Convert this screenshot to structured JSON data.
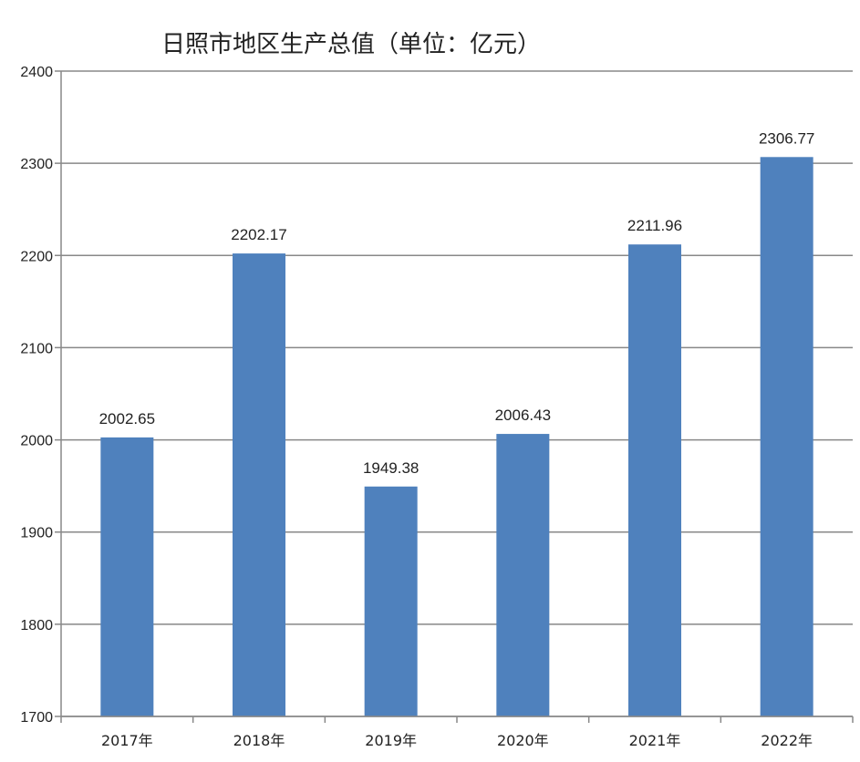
{
  "chart_data": {
    "type": "bar",
    "title": "日照市地区生产总值（单位：亿元）",
    "categories": [
      "2017年",
      "2018年",
      "2019年",
      "2020年",
      "2021年",
      "2022年"
    ],
    "values": [
      2002.65,
      2202.17,
      1949.38,
      2006.43,
      2211.96,
      2306.77
    ],
    "value_labels": [
      "2002.65",
      "2202.17",
      "1949.38",
      "2006.43",
      "2211.96",
      "2306.77"
    ],
    "ylim": [
      1700,
      2400
    ],
    "yticks": [
      "1700",
      "1800",
      "1900",
      "2000",
      "2100",
      "2200",
      "2300",
      "2400"
    ],
    "grid": true,
    "legend": "none",
    "bar_color": "#4f81bd",
    "grid_color": "#888888",
    "axis_color": "#888888"
  }
}
